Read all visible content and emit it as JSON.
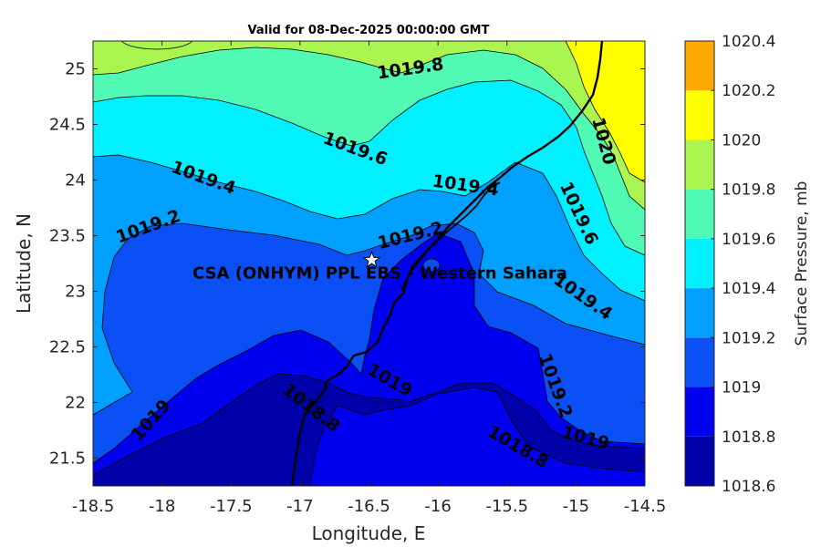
{
  "chart_data": {
    "type": "contour",
    "title": "Valid for 08-Dec-2025 00:00:00 GMT",
    "xlabel": "Longitude, E",
    "ylabel": "Latitude, N",
    "xlim": [
      -18.5,
      -14.5
    ],
    "ylim": [
      21.25,
      25.25
    ],
    "xticks": [
      -18.5,
      -18,
      -17.5,
      -17,
      -16.5,
      -16,
      -15.5,
      -15,
      -14.5
    ],
    "xtick_labels": [
      "-18.5",
      "-18",
      "-17.5",
      "-17",
      "-16.5",
      "-16",
      "-15.5",
      "-15",
      "-14.5"
    ],
    "yticks": [
      21.5,
      22,
      22.5,
      23,
      23.5,
      24,
      24.5,
      25
    ],
    "ytick_labels": [
      "21.5",
      "22",
      "22.5",
      "23",
      "23.5",
      "24",
      "24.5",
      "25"
    ],
    "colorbar": {
      "label": "Surface Pressure, mb",
      "levels": [
        1018.6,
        1018.8,
        1019,
        1019.2,
        1019.4,
        1019.6,
        1019.8,
        1020,
        1020.2,
        1020.4
      ],
      "tick_labels": [
        "1018.6",
        "1018.8",
        "1019",
        "1019.2",
        "1019.4",
        "1019.6",
        "1019.8",
        "1020",
        "1020.2",
        "1020.4"
      ],
      "colors": [
        "#0000aa",
        "#0000ee",
        "#0a50f5",
        "#00a0ff",
        "#00f0ff",
        "#50fab4",
        "#aaf550",
        "#ffff00",
        "#ffaa00",
        "#ff5500"
      ]
    },
    "contour_labels": [
      {
        "text": "1019.8",
        "lon": -16.2,
        "lat": 25.0,
        "angle": -8
      },
      {
        "text": "1020",
        "lon": -14.8,
        "lat": 24.35,
        "angle": 75
      },
      {
        "text": "1019.6",
        "lon": -16.6,
        "lat": 24.28,
        "angle": 20
      },
      {
        "text": "1019.4",
        "lon": -17.7,
        "lat": 24.02,
        "angle": 20
      },
      {
        "text": "1019.4",
        "lon": -15.8,
        "lat": 23.95,
        "angle": 8
      },
      {
        "text": "1019.6",
        "lon": -14.98,
        "lat": 23.7,
        "angle": 65
      },
      {
        "text": "1019.2",
        "lon": -18.1,
        "lat": 23.58,
        "angle": -20
      },
      {
        "text": "1019.2",
        "lon": -16.2,
        "lat": 23.5,
        "angle": -14
      },
      {
        "text": "1019.4",
        "lon": -14.95,
        "lat": 22.95,
        "angle": 35
      },
      {
        "text": "1019",
        "lon": -16.35,
        "lat": 22.2,
        "angle": 30
      },
      {
        "text": "1019.2",
        "lon": -15.15,
        "lat": 22.15,
        "angle": 70
      },
      {
        "text": "1018.8",
        "lon": -16.92,
        "lat": 21.95,
        "angle": 38
      },
      {
        "text": "1019",
        "lon": -18.08,
        "lat": 21.84,
        "angle": -48
      },
      {
        "text": "1019",
        "lon": -14.93,
        "lat": 21.68,
        "angle": 15
      },
      {
        "text": "1018.8",
        "lon": -15.42,
        "lat": 21.6,
        "angle": 30
      }
    ],
    "station": {
      "name": "CSA (ONHYM) PPL EBS  - Western Sahara",
      "lon": -16.48,
      "lat": 23.28
    }
  }
}
